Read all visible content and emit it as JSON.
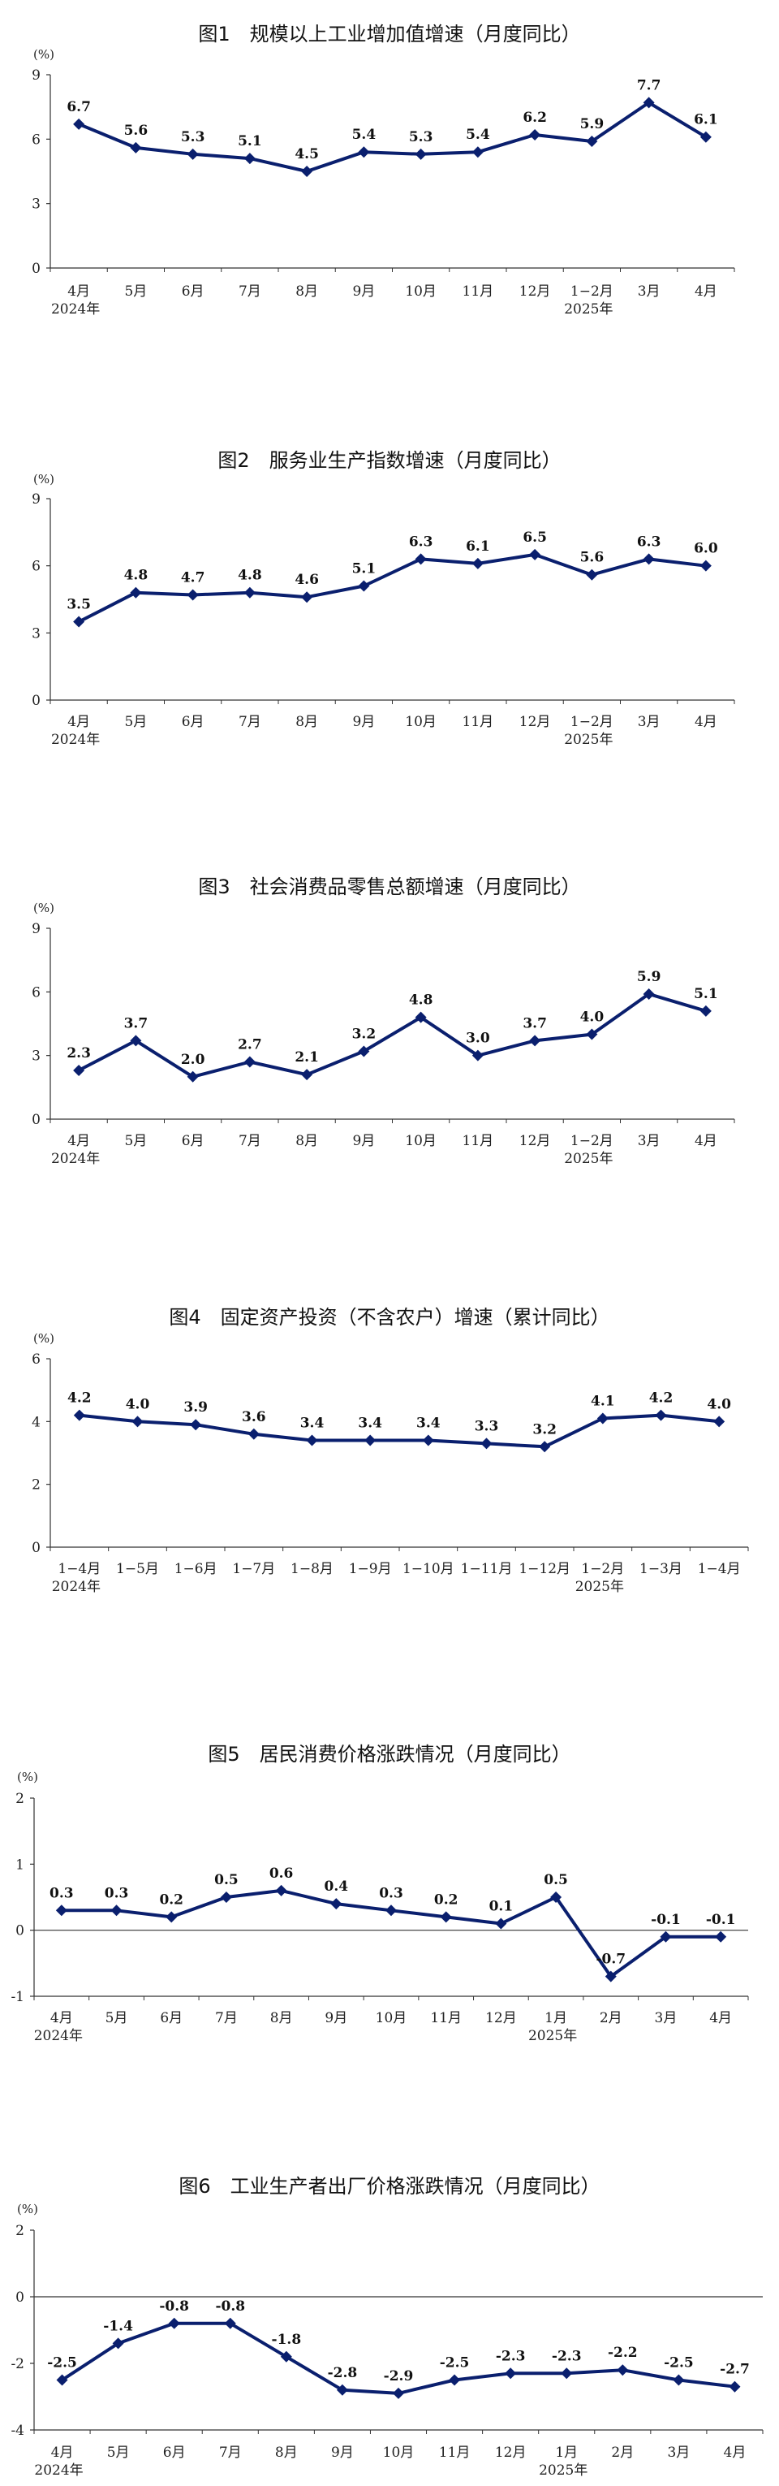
{
  "chart_data": [
    {
      "type": "line",
      "title": "图1　规模以上工业增加值增速（月度同比）",
      "unit": "(%)",
      "yticks": [
        "0",
        "3",
        "6",
        "9"
      ],
      "ylim": [
        0,
        9
      ],
      "categories": [
        "4月",
        "5月",
        "6月",
        "7月",
        "8月",
        "9月",
        "10月",
        "11月",
        "12月",
        "1−2月",
        "3月",
        "4月"
      ],
      "year_labels": [
        {
          "index": 0,
          "text": "2024年"
        },
        {
          "index": 9,
          "text": "2025年"
        }
      ],
      "values": [
        6.7,
        5.6,
        5.3,
        5.1,
        4.5,
        5.4,
        5.3,
        5.4,
        6.2,
        5.9,
        7.7,
        6.1
      ],
      "value_labels": [
        "6.7",
        "5.6",
        "5.3",
        "5.1",
        "4.5",
        "5.4",
        "5.3",
        "5.4",
        "6.2",
        "5.9",
        "7.7",
        "6.1"
      ],
      "color": "#0a1f6e"
    },
    {
      "type": "line",
      "title": "图2　服务业生产指数增速（月度同比）",
      "unit": "(%)",
      "yticks": [
        "0",
        "3",
        "6",
        "9"
      ],
      "ylim": [
        0,
        9
      ],
      "categories": [
        "4月",
        "5月",
        "6月",
        "7月",
        "8月",
        "9月",
        "10月",
        "11月",
        "12月",
        "1−2月",
        "3月",
        "4月"
      ],
      "year_labels": [
        {
          "index": 0,
          "text": "2024年"
        },
        {
          "index": 9,
          "text": "2025年"
        }
      ],
      "values": [
        3.5,
        4.8,
        4.7,
        4.8,
        4.6,
        5.1,
        6.3,
        6.1,
        6.5,
        5.6,
        6.3,
        6.0
      ],
      "value_labels": [
        "3.5",
        "4.8",
        "4.7",
        "4.8",
        "4.6",
        "5.1",
        "6.3",
        "6.1",
        "6.5",
        "5.6",
        "6.3",
        "6.0"
      ],
      "color": "#0a1f6e"
    },
    {
      "type": "line",
      "title": "图3　社会消费品零售总额增速（月度同比）",
      "unit": "(%)",
      "yticks": [
        "0",
        "3",
        "6",
        "9"
      ],
      "ylim": [
        0,
        9
      ],
      "categories": [
        "4月",
        "5月",
        "6月",
        "7月",
        "8月",
        "9月",
        "10月",
        "11月",
        "12月",
        "1−2月",
        "3月",
        "4月"
      ],
      "year_labels": [
        {
          "index": 0,
          "text": "2024年"
        },
        {
          "index": 9,
          "text": "2025年"
        }
      ],
      "values": [
        2.3,
        3.7,
        2.0,
        2.7,
        2.1,
        3.2,
        4.8,
        3.0,
        3.7,
        4.0,
        5.9,
        5.1
      ],
      "value_labels": [
        "2.3",
        "3.7",
        "2.0",
        "2.7",
        "2.1",
        "3.2",
        "4.8",
        "3.0",
        "3.7",
        "4.0",
        "5.9",
        "5.1"
      ],
      "color": "#0a1f6e"
    },
    {
      "type": "line",
      "title": "图4　固定资产投资（不含农户）增速（累计同比）",
      "unit": "(%)",
      "yticks": [
        "0",
        "2",
        "4",
        "6"
      ],
      "ylim": [
        0,
        6
      ],
      "categories": [
        "1−4月",
        "1−5月",
        "1−6月",
        "1−7月",
        "1−8月",
        "1−9月",
        "1−10月",
        "1−11月",
        "1−12月",
        "1−2月",
        "1−3月",
        "1−4月"
      ],
      "year_labels": [
        {
          "index": 0,
          "text": "2024年"
        },
        {
          "index": 9,
          "text": "2025年"
        }
      ],
      "values": [
        4.2,
        4.0,
        3.9,
        3.6,
        3.4,
        3.4,
        3.4,
        3.3,
        3.2,
        4.1,
        4.2,
        4.0
      ],
      "value_labels": [
        "4.2",
        "4.0",
        "3.9",
        "3.6",
        "3.4",
        "3.4",
        "3.4",
        "3.3",
        "3.2",
        "4.1",
        "4.2",
        "4.0"
      ],
      "color": "#0a1f6e"
    },
    {
      "type": "line",
      "title": "图5　居民消费价格涨跌情况（月度同比）",
      "unit": "(%)",
      "yticks": [
        "-1",
        "0",
        "1",
        "2"
      ],
      "ylim": [
        -1,
        2
      ],
      "categories": [
        "4月",
        "5月",
        "6月",
        "7月",
        "8月",
        "9月",
        "10月",
        "11月",
        "12月",
        "1月",
        "2月",
        "3月",
        "4月"
      ],
      "year_labels": [
        {
          "index": 0,
          "text": "2024年"
        },
        {
          "index": 9,
          "text": "2025年"
        }
      ],
      "values": [
        0.3,
        0.3,
        0.2,
        0.5,
        0.6,
        0.4,
        0.3,
        0.2,
        0.1,
        0.5,
        -0.7,
        -0.1,
        -0.1
      ],
      "value_labels": [
        "0.3",
        "0.3",
        "0.2",
        "0.5",
        "0.6",
        "0.4",
        "0.3",
        "0.2",
        "0.1",
        "0.5",
        "-0.7",
        "-0.1",
        "-0.1"
      ],
      "color": "#0a1f6e"
    },
    {
      "type": "line",
      "title": "图6　工业生产者出厂价格涨跌情况（月度同比）",
      "unit": "(%)",
      "yticks": [
        "-4",
        "-2",
        "0",
        "2"
      ],
      "ylim": [
        -4,
        2
      ],
      "categories": [
        "4月",
        "5月",
        "6月",
        "7月",
        "8月",
        "9月",
        "10月",
        "11月",
        "12月",
        "1月",
        "2月",
        "3月",
        "4月"
      ],
      "year_labels": [
        {
          "index": 0,
          "text": "2024年"
        },
        {
          "index": 9,
          "text": "2025年"
        }
      ],
      "values": [
        -2.5,
        -1.4,
        -0.8,
        -0.8,
        -1.8,
        -2.8,
        -2.9,
        -2.5,
        -2.3,
        -2.3,
        -2.2,
        -2.5,
        -2.7
      ],
      "value_labels": [
        "-2.5",
        "-1.4",
        "-0.8",
        "-0.8",
        "-1.8",
        "-2.8",
        "-2.9",
        "-2.5",
        "-2.3",
        "-2.3",
        "-2.2",
        "-2.5",
        "-2.7"
      ],
      "color": "#0a1f6e"
    }
  ]
}
